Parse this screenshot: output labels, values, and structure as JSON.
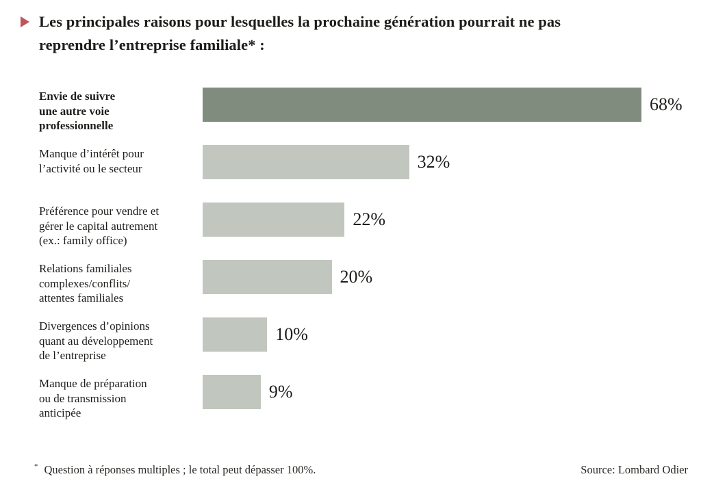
{
  "colors": {
    "accent_triangle": "#bf545c",
    "bar_highlight": "#7f8c7e",
    "bar_default": "#c1c7be",
    "text": "#1e1d1a",
    "background": "#ffffff"
  },
  "header": {
    "title": "Les principales raisons pour lesquelles la prochaine génération pourrait ne pas\nreprendre l’entreprise familiale* :"
  },
  "chart_data": {
    "type": "bar",
    "orientation": "horizontal",
    "title": "Les principales raisons pour lesquelles la prochaine génération pourrait ne pas reprendre l’entreprise familiale*",
    "unit": "%",
    "axis_max_for_scale": 68,
    "grid": false,
    "legend": false,
    "categories": [
      "Envie de suivre une autre voie professionnelle",
      "Manque d’intérêt pour l’activité ou le secteur",
      "Préférence pour vendre et gérer le capital autrement (ex.: family office)",
      "Relations familiales complexes/conflits/attentes familiales",
      "Divergences d’opinions quant au développement de l’entreprise",
      "Manque de préparation ou de transmission anticipée"
    ],
    "values": [
      68,
      32,
      22,
      20,
      10,
      9
    ],
    "rows": [
      {
        "label": "Envie de suivre\nune autre voie\nprofessionnelle",
        "value": 68,
        "display": "68%",
        "emphasis": true
      },
      {
        "label": "Manque d’intérêt pour\nl’activité ou le secteur",
        "value": 32,
        "display": "32%",
        "emphasis": false
      },
      {
        "label": "Préférence pour vendre et\ngérer le capital autrement\n(ex.: family office)",
        "value": 22,
        "display": "22%",
        "emphasis": false
      },
      {
        "label": "Relations familiales\ncomplexes/conflits/\nattentes familiales",
        "value": 20,
        "display": "20%",
        "emphasis": false
      },
      {
        "label": "Divergences d’opinions\nquant au développement\nde l’entreprise",
        "value": 10,
        "display": "10%",
        "emphasis": false
      },
      {
        "label": "Manque de préparation\nou de transmission\nanticipée",
        "value": 9,
        "display": "9%",
        "emphasis": false
      }
    ]
  },
  "footer": {
    "note_marker": "*",
    "note": "Question à réponses multiples ; le total peut dépasser 100%.",
    "source": "Source: Lombard Odier"
  }
}
